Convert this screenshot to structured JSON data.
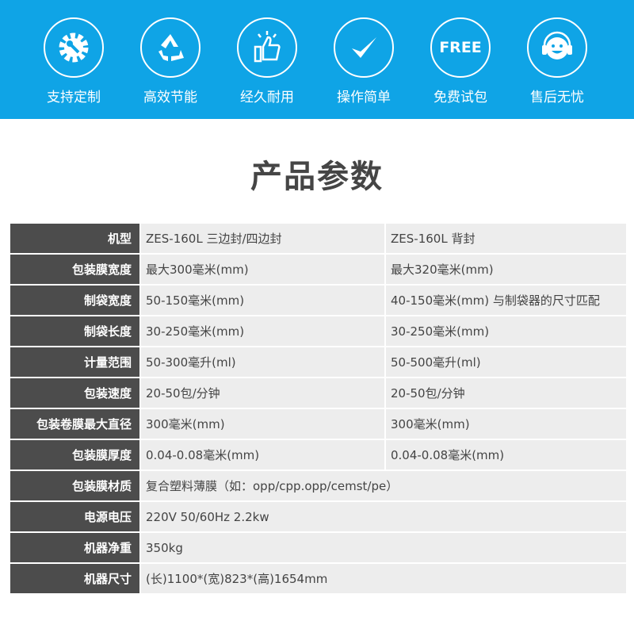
{
  "colors": {
    "banner": "#0fa4e6",
    "label_cell": "#4c4c4c",
    "value_cell": "#ededed"
  },
  "features": [
    {
      "icon": "gear-wrench-icon",
      "label": "支持定制"
    },
    {
      "icon": "recycle-icon",
      "label": "高效节能"
    },
    {
      "icon": "thumbs-up-icon",
      "label": "经久耐用"
    },
    {
      "icon": "checkmark-icon",
      "label": "操作简单"
    },
    {
      "icon": "free-icon",
      "label": "免费试包",
      "icon_text": "FREE"
    },
    {
      "icon": "headset-smiley-icon",
      "label": "售后无忧"
    }
  ],
  "title": "产品参数",
  "rows": [
    {
      "k": "机型",
      "a": "ZES-160L 三边封/四边封",
      "b": "ZES-160L 背封"
    },
    {
      "k": "包装膜宽度",
      "a": "最大300毫米(mm)",
      "b": "最大320毫米(mm)"
    },
    {
      "k": "制袋宽度",
      "a": "50-150毫米(mm)",
      "b": "40-150毫米(mm) 与制袋器的尺寸匹配"
    },
    {
      "k": "制袋长度",
      "a": "30-250毫米(mm)",
      "b": "30-250毫米(mm)"
    },
    {
      "k": "计量范围",
      "a": "50-300毫升(ml)",
      "b": "50-500毫升(ml)"
    },
    {
      "k": "包装速度",
      "a": "20-50包/分钟",
      "b": "20-50包/分钟"
    },
    {
      "k": "包装卷膜最大直径",
      "a": "300毫米(mm)",
      "b": "300毫米(mm)"
    },
    {
      "k": "包装膜厚度",
      "a": "0.04-0.08毫米(mm)",
      "b": "0.04-0.08毫米(mm)"
    },
    {
      "k": "包装膜材质",
      "a": "复合塑料薄膜（如：opp/cpp.opp/cemst/pe）"
    },
    {
      "k": "电源电压",
      "a": "220V  50/60Hz  2.2kw"
    },
    {
      "k": "机器净重",
      "a": "350kg"
    },
    {
      "k": "机器尺寸",
      "a": "(长)1100*(宽)823*(高)1654mm"
    }
  ]
}
